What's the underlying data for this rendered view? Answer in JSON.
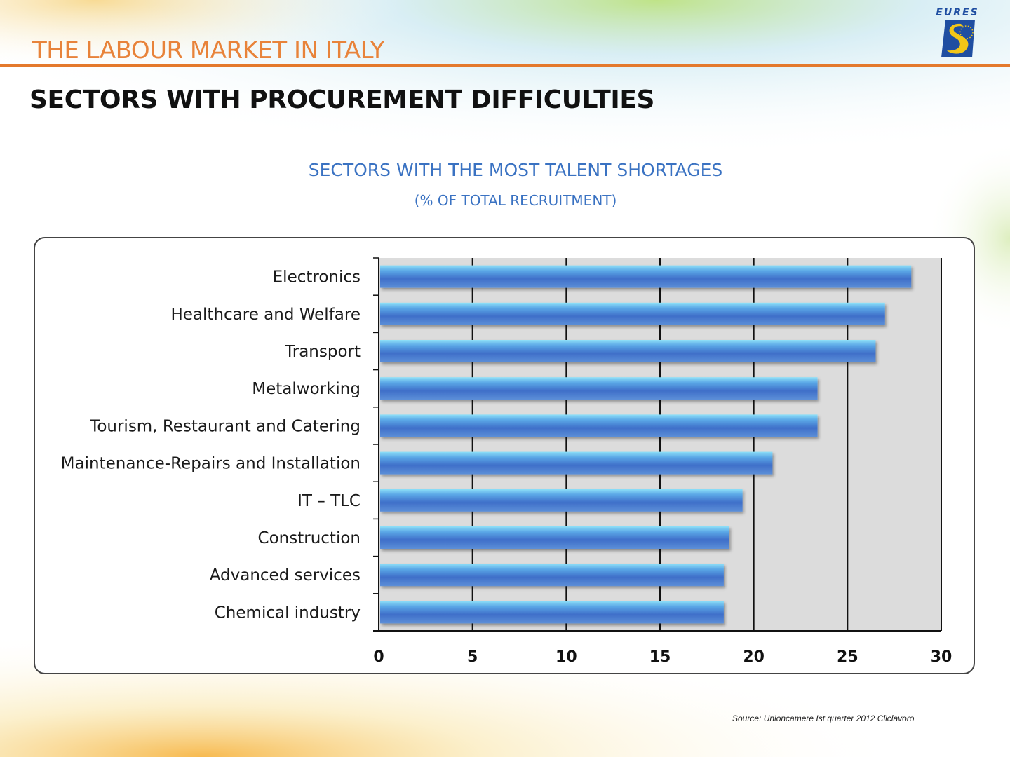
{
  "header": {
    "title": "THE LABOUR MARKET IN ITALY",
    "logo_text": "EURES"
  },
  "page": {
    "title": "SECTORS WITH PROCUREMENT DIFFICULTIES"
  },
  "colors": {
    "accent_orange": "#e4792c",
    "title_blue": "#3a72c2",
    "bar_blue": "#4a7fd0",
    "plot_background": "#dcdcdc"
  },
  "chart_data": {
    "type": "bar",
    "orientation": "horizontal",
    "title": "SECTORS WITH THE MOST TALENT SHORTAGES",
    "subtitle": "(% OF TOTAL RECRUITMENT)",
    "categories": [
      "Electronics",
      "Healthcare and Welfare",
      "Transport",
      "Metalworking",
      "Tourism, Restaurant and Catering",
      "Maintenance-Repairs and Installation",
      "IT – TLC",
      "Construction",
      "Advanced services",
      "Chemical industry"
    ],
    "values": [
      28.4,
      27.0,
      26.5,
      23.4,
      23.4,
      21.0,
      19.4,
      18.7,
      18.4,
      18.4
    ],
    "xlim": [
      0,
      30
    ],
    "xticks": [
      0,
      5,
      10,
      15,
      20,
      25,
      30
    ],
    "xlabel": "",
    "ylabel": "",
    "grid": true
  },
  "source": "Source: Unioncamere Ist quarter 2012 Cliclavoro"
}
